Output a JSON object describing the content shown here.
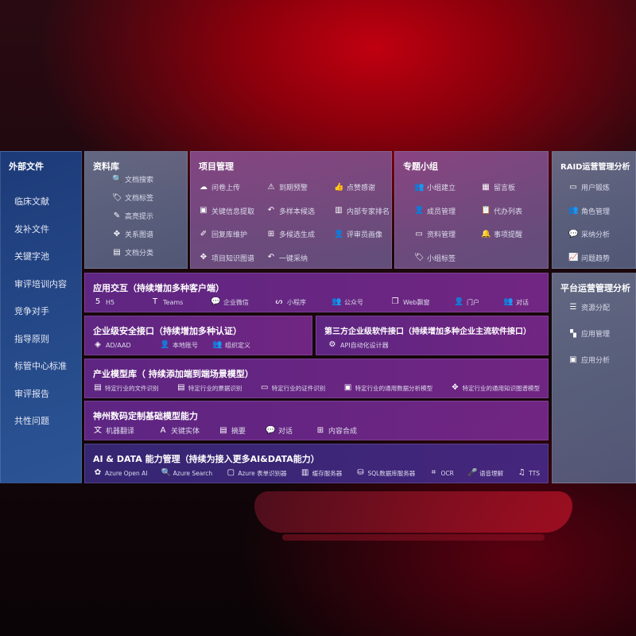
{
  "colors": {
    "sidebar": "#233f7e",
    "accent_red": "#c00010",
    "module_purple": "#6e2c8c"
  },
  "sidebar": {
    "title": "外部文件",
    "items": [
      "临床文献",
      "发补文件",
      "关键字池",
      "审评培训内容",
      "竞争对手",
      "指导原则",
      "标管中心标准",
      "审评报告",
      "共性问题"
    ]
  },
  "panels": [
    {
      "id": "library",
      "title": "资料库",
      "items": [
        {
          "icon": "document-search-icon",
          "glyph": "🔍",
          "label": "文档搜索"
        },
        {
          "icon": "tag-icon",
          "glyph": "🏷",
          "label": "文档标签"
        },
        {
          "icon": "pen-icon",
          "glyph": "✎",
          "label": "高亮提示"
        },
        {
          "icon": "graph-icon",
          "glyph": "✥",
          "label": "关系图谱"
        },
        {
          "icon": "document-stack-icon",
          "glyph": "▤",
          "label": "文档分类"
        }
      ]
    },
    {
      "id": "project",
      "title": "项目管理",
      "items": [
        {
          "icon": "cloud-upload-icon",
          "glyph": "☁",
          "label": "问卷上传"
        },
        {
          "icon": "alarm-icon",
          "glyph": "⚠",
          "label": "到期预警"
        },
        {
          "icon": "thumbs-up-icon",
          "glyph": "👍",
          "label": "点赞感谢"
        },
        {
          "icon": "extract-icon",
          "glyph": "▣",
          "label": "关键信息提取"
        },
        {
          "icon": "reply-icon",
          "glyph": "↶",
          "label": "多样本候选"
        },
        {
          "icon": "ranking-icon",
          "glyph": "▥",
          "label": "内部专家排名"
        },
        {
          "icon": "edit-icon",
          "glyph": "✐",
          "label": "回复库维护"
        },
        {
          "icon": "puzzle-icon",
          "glyph": "⊞",
          "label": "多候选生成"
        },
        {
          "icon": "user-icon",
          "glyph": "👤",
          "label": "评审员画像"
        },
        {
          "icon": "knowledge-graph-icon",
          "glyph": "✥",
          "label": "项目知识图谱"
        },
        {
          "icon": "reply-icon",
          "glyph": "↶",
          "label": "一键采纳"
        }
      ]
    },
    {
      "id": "group",
      "title": "专题小组",
      "items": [
        {
          "icon": "users-icon",
          "glyph": "👥",
          "label": "小组建立"
        },
        {
          "icon": "bbs-icon",
          "glyph": "▦",
          "label": "留言板"
        },
        {
          "icon": "add-user-icon",
          "glyph": "👤",
          "label": "成员管理"
        },
        {
          "icon": "clipboard-icon",
          "glyph": "📋",
          "label": "代办列表"
        },
        {
          "icon": "folder-icon",
          "glyph": "▭",
          "label": "资料管理"
        },
        {
          "icon": "bell-icon",
          "glyph": "🔔",
          "label": "事项提醒"
        },
        {
          "icon": "tag-icon",
          "glyph": "🏷",
          "label": "小组标签"
        }
      ]
    },
    {
      "id": "raid",
      "title": "RAID运营管理分析",
      "items": [
        {
          "icon": "id-card-icon",
          "glyph": "▭",
          "label": "用户锻炼"
        },
        {
          "icon": "users-icon",
          "glyph": "👥",
          "label": "角色管理"
        },
        {
          "icon": "qa-icon",
          "glyph": "💬",
          "label": "采纳分析"
        },
        {
          "icon": "trend-icon",
          "glyph": "📈",
          "label": "问题趋势"
        }
      ]
    },
    {
      "id": "platform",
      "title": "平台运营管理分析",
      "items": [
        {
          "icon": "checklist-icon",
          "glyph": "☰",
          "label": "资源分配"
        },
        {
          "icon": "apps-icon",
          "glyph": "▚",
          "label": "应用管理"
        },
        {
          "icon": "analytics-icon",
          "glyph": "▣",
          "label": "应用分析"
        }
      ]
    },
    {
      "id": "interaction",
      "title": "应用交互（持续增加多种客户端）",
      "items": [
        {
          "icon": "html5-icon",
          "glyph": "5",
          "label": "H5"
        },
        {
          "icon": "teams-icon",
          "glyph": "T",
          "label": "Teams"
        },
        {
          "icon": "wecom-icon",
          "glyph": "💬",
          "label": "企业微信"
        },
        {
          "icon": "mini-program-icon",
          "glyph": "ᔕ",
          "label": "小程序"
        },
        {
          "icon": "users-icon",
          "glyph": "👥",
          "label": "公众号"
        },
        {
          "icon": "window-icon",
          "glyph": "❐",
          "label": "Web飘窗"
        },
        {
          "icon": "portal-icon",
          "glyph": "👤",
          "label": "门户"
        },
        {
          "icon": "chat-users-icon",
          "glyph": "👥",
          "label": "对话"
        }
      ]
    },
    {
      "id": "security",
      "title": "企业级安全接口（持续增加多种认证）",
      "items": [
        {
          "icon": "ad-icon",
          "glyph": "◈",
          "label": "AD/AAD"
        },
        {
          "icon": "local-account-icon",
          "glyph": "👤",
          "label": "本地账号"
        },
        {
          "icon": "org-icon",
          "glyph": "👥",
          "label": "组织定义"
        }
      ]
    },
    {
      "id": "thirdparty",
      "title": "第三方企业级软件接口（持续增加多种企业主流软件接口）",
      "items": [
        {
          "icon": "api-gear-icon",
          "glyph": "⚙",
          "label": "API自动化设计器"
        }
      ]
    },
    {
      "id": "industry",
      "title": "产业模型库（ 持续添加端到端场景模型）",
      "items": [
        {
          "icon": "file-icon",
          "glyph": "▤",
          "label": "特定行业的文件识别"
        },
        {
          "icon": "receipt-icon",
          "glyph": "▤",
          "label": "特定行业的票据识别"
        },
        {
          "icon": "id-card-icon",
          "glyph": "▭",
          "label": "特定行业的证件识别"
        },
        {
          "icon": "data-analysis-icon",
          "glyph": "▣",
          "label": "特定行业的通用数据分析模型"
        },
        {
          "icon": "knowledge-graph-icon",
          "glyph": "✥",
          "label": "特定行业的通用知识图谱模型"
        }
      ]
    },
    {
      "id": "foundation",
      "title": "神州数码定制基础模型能力",
      "items": [
        {
          "icon": "translate-icon",
          "glyph": "文",
          "label": "机器翻译"
        },
        {
          "icon": "entity-icon",
          "glyph": "A",
          "label": "关键实体"
        },
        {
          "icon": "summary-icon",
          "glyph": "▤",
          "label": "摘要"
        },
        {
          "icon": "chat-icon",
          "glyph": "💬",
          "label": "对话"
        },
        {
          "icon": "puzzle-icon",
          "glyph": "⊞",
          "label": "内容合成"
        }
      ]
    },
    {
      "id": "aidata",
      "title": "AI & DATA 能力管理（持续为接入更多AI&DATA能力）",
      "items": [
        {
          "icon": "openai-icon",
          "glyph": "✿",
          "label": "Azure Open AI"
        },
        {
          "icon": "search-doc-icon",
          "glyph": "🔍",
          "label": "Azure Search"
        },
        {
          "icon": "form-recognizer-icon",
          "glyph": "▢",
          "label": "Azure 表单识别器"
        },
        {
          "icon": "cache-server-icon",
          "glyph": "▥",
          "label": "缓存服务器"
        },
        {
          "icon": "sql-database-icon",
          "glyph": "⛁",
          "label": "SQL数据库服务器"
        },
        {
          "icon": "ocr-icon",
          "glyph": "⌗",
          "label": "OCR"
        },
        {
          "icon": "speech-icon",
          "glyph": "🎤",
          "label": "语音理解"
        },
        {
          "icon": "tts-icon",
          "glyph": "♫",
          "label": "TTS"
        }
      ]
    }
  ]
}
